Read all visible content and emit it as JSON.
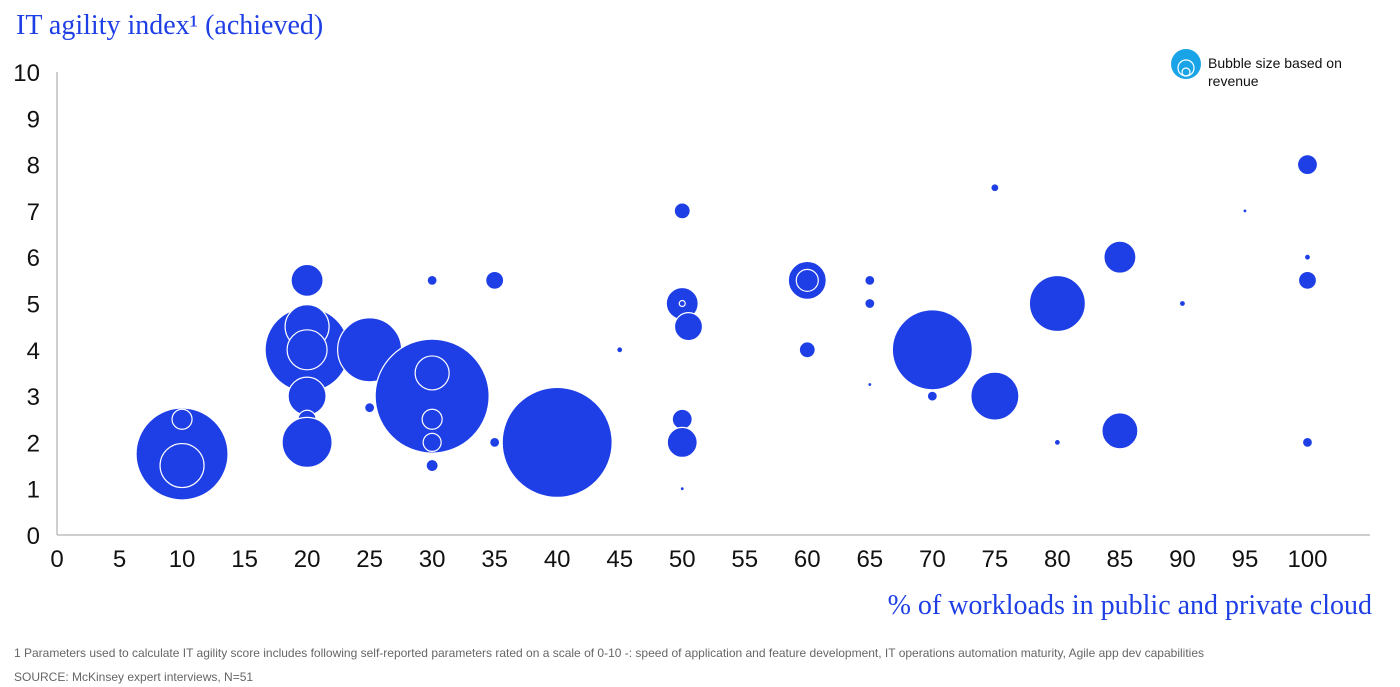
{
  "chart_data": {
    "type": "scatter",
    "title": "IT agility index¹ (achieved)",
    "xlabel": "% of workloads in public and private cloud",
    "ylabel": "",
    "xlim": [
      0,
      105
    ],
    "ylim": [
      0,
      10
    ],
    "xticks": [
      "0",
      "5",
      "10",
      "15",
      "20",
      "25",
      "30",
      "35",
      "40",
      "45",
      "50",
      "55",
      "60",
      "65",
      "70",
      "75",
      "80",
      "85",
      "90",
      "95",
      "100"
    ],
    "yticks": [
      "0",
      "1",
      "2",
      "3",
      "4",
      "5",
      "6",
      "7",
      "8",
      "9",
      "10"
    ],
    "legend": {
      "text": "Bubble size based on revenue",
      "placement": "top-right"
    },
    "colors": {
      "bubble": "#1e3fe6",
      "edge": "#ffffff",
      "legend_icon": "#1aa4e8"
    },
    "points": [
      {
        "x": 10,
        "y": 1.75,
        "r": 46
      },
      {
        "x": 10,
        "y": 1.5,
        "r": 22
      },
      {
        "x": 10,
        "y": 2.5,
        "r": 10
      },
      {
        "x": 20,
        "y": 4,
        "r": 42
      },
      {
        "x": 20,
        "y": 4.5,
        "r": 22
      },
      {
        "x": 20,
        "y": 4,
        "r": 20
      },
      {
        "x": 20,
        "y": 5.5,
        "r": 16
      },
      {
        "x": 20,
        "y": 3,
        "r": 19
      },
      {
        "x": 20,
        "y": 2.5,
        "r": 9
      },
      {
        "x": 20,
        "y": 2,
        "r": 25
      },
      {
        "x": 25,
        "y": 4,
        "r": 32
      },
      {
        "x": 25,
        "y": 2.75,
        "r": 5
      },
      {
        "x": 30,
        "y": 3,
        "r": 57
      },
      {
        "x": 30,
        "y": 3.5,
        "r": 17
      },
      {
        "x": 30,
        "y": 2.5,
        "r": 10
      },
      {
        "x": 30,
        "y": 2,
        "r": 9
      },
      {
        "x": 30,
        "y": 1.5,
        "r": 6
      },
      {
        "x": 30,
        "y": 5.5,
        "r": 5
      },
      {
        "x": 35,
        "y": 5.5,
        "r": 9
      },
      {
        "x": 35,
        "y": 2,
        "r": 5
      },
      {
        "x": 40,
        "y": 2,
        "r": 55
      },
      {
        "x": 45,
        "y": 4,
        "r": 3
      },
      {
        "x": 50,
        "y": 7,
        "r": 8
      },
      {
        "x": 50,
        "y": 5,
        "r": 16
      },
      {
        "x": 50,
        "y": 5,
        "r": 3
      },
      {
        "x": 50.5,
        "y": 4.5,
        "r": 14
      },
      {
        "x": 50,
        "y": 2.5,
        "r": 10
      },
      {
        "x": 50,
        "y": 2,
        "r": 15
      },
      {
        "x": 50,
        "y": 1,
        "r": 2
      },
      {
        "x": 60,
        "y": 5.5,
        "r": 19
      },
      {
        "x": 60,
        "y": 5.5,
        "r": 11
      },
      {
        "x": 60,
        "y": 4,
        "r": 8
      },
      {
        "x": 65,
        "y": 5.5,
        "r": 5
      },
      {
        "x": 65,
        "y": 5,
        "r": 5
      },
      {
        "x": 65,
        "y": 3.25,
        "r": 2
      },
      {
        "x": 70,
        "y": 4,
        "r": 40
      },
      {
        "x": 70,
        "y": 3,
        "r": 5
      },
      {
        "x": 75,
        "y": 7.5,
        "r": 4
      },
      {
        "x": 75,
        "y": 3,
        "r": 24
      },
      {
        "x": 80,
        "y": 5,
        "r": 28
      },
      {
        "x": 80,
        "y": 2,
        "r": 3
      },
      {
        "x": 85,
        "y": 6,
        "r": 16
      },
      {
        "x": 85,
        "y": 2.25,
        "r": 18
      },
      {
        "x": 90,
        "y": 5,
        "r": 3
      },
      {
        "x": 95,
        "y": 7,
        "r": 2
      },
      {
        "x": 100,
        "y": 8,
        "r": 10
      },
      {
        "x": 100,
        "y": 6,
        "r": 3
      },
      {
        "x": 100,
        "y": 5.5,
        "r": 9
      },
      {
        "x": 100,
        "y": 2,
        "r": 5
      }
    ]
  },
  "footnote": "1 Parameters used to calculate IT agility score includes following self-reported parameters rated on a scale of 0-10 -: speed of application and feature development, IT operations automation maturity, Agile app dev capabilities",
  "source": "SOURCE: McKinsey expert interviews, N=51"
}
